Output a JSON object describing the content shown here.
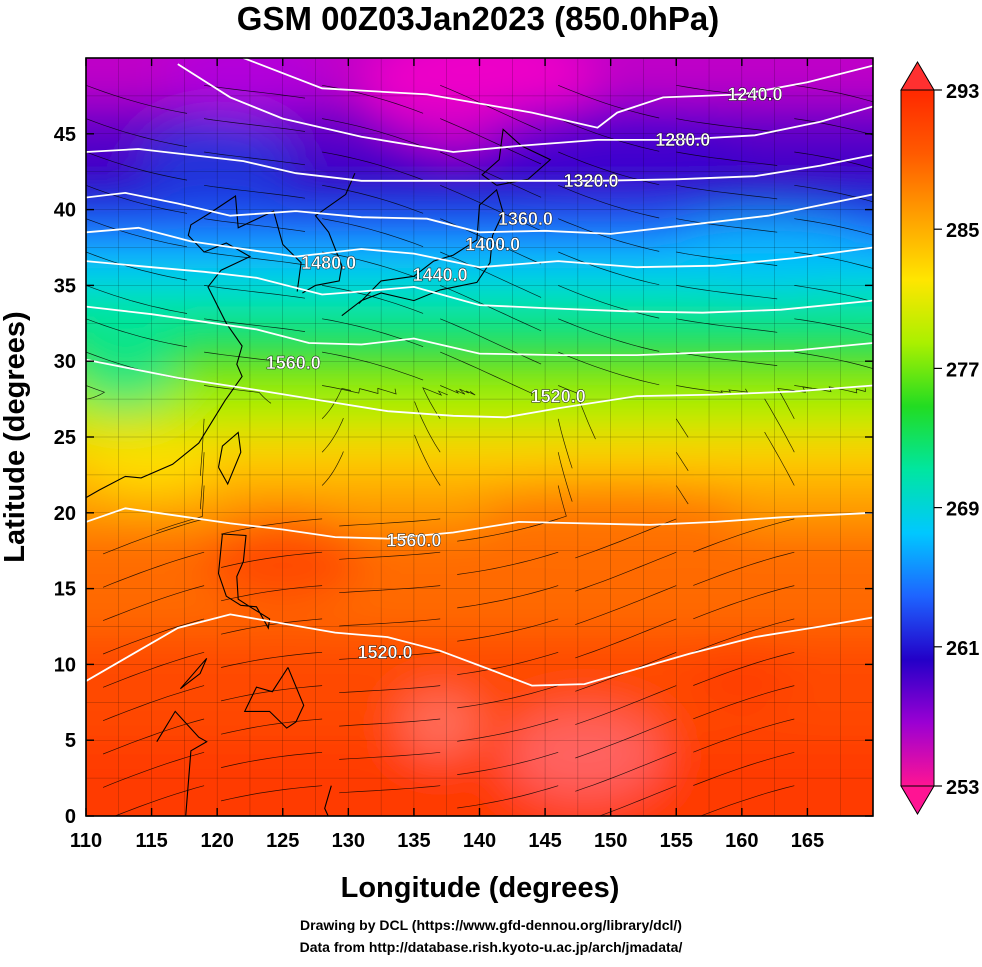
{
  "figure": {
    "title": "GSM 00Z03Jan2023 (850.0hPa)",
    "xlabel": "Longitude (degrees)",
    "ylabel": "Latitude  (degrees)",
    "credits": [
      "Drawing by DCL (https://www.gfd-dennou.org/library/dcl/)",
      "Data from http://database.rish.kyoto-u.ac.jp/arch/jmadata/"
    ]
  },
  "map_extent": {
    "lon": [
      110,
      170
    ],
    "lat": [
      0,
      50
    ]
  },
  "colorbar": {
    "range": [
      253,
      293
    ],
    "tick_labels": [
      "293",
      "285",
      "277",
      "269",
      "261",
      "253"
    ],
    "colors": [
      "#ff1493",
      "#9b00d3",
      "#2300c8",
      "#1e64ff",
      "#00c8ff",
      "#00e6a0",
      "#22dc22",
      "#aaf000",
      "#ffe600",
      "#ffa000",
      "#ff5a00",
      "#ff2800"
    ]
  },
  "chart_data": {
    "type": "heatmap",
    "title": "GSM 00Z03Jan2023 (850.0hPa)",
    "xlabel": "Longitude (degrees)",
    "ylabel": "Latitude  (degrees)",
    "xlim": [
      110,
      170
    ],
    "ylim": [
      0,
      50
    ],
    "x_ticks": [
      "110",
      "115",
      "120",
      "125",
      "130",
      "135",
      "140",
      "145",
      "150",
      "155",
      "160",
      "165"
    ],
    "y_ticks": [
      "0",
      "5",
      "10",
      "15",
      "20",
      "25",
      "30",
      "35",
      "40",
      "45"
    ],
    "shading": "850 hPa temperature (K)",
    "color_range": [
      253,
      293
    ],
    "contours": "geopotential height (m)",
    "contour_labels": [
      {
        "text": "1240.0",
        "lon": 161,
        "lat": 47.5
      },
      {
        "text": "1280.0",
        "lon": 155.5,
        "lat": 44.5
      },
      {
        "text": "1320.0",
        "lon": 148.5,
        "lat": 41.8
      },
      {
        "text": "1360.0",
        "lon": 143.5,
        "lat": 39.3
      },
      {
        "text": "1400.0",
        "lon": 141,
        "lat": 37.6
      },
      {
        "text": "1440.0",
        "lon": 137,
        "lat": 35.6
      },
      {
        "text": "1480.0",
        "lon": 128.5,
        "lat": 36.4
      },
      {
        "text": "1560.0",
        "lon": 125.8,
        "lat": 29.8
      },
      {
        "text": "1520.0",
        "lon": 146,
        "lat": 27.6
      },
      {
        "text": "1560.0",
        "lon": 135,
        "lat": 18.1
      },
      {
        "text": "1520.0",
        "lon": 132.8,
        "lat": 10.7
      }
    ],
    "contour_lines": [
      {
        "level": "1240.0",
        "points": [
          [
            122,
            50
          ],
          [
            128,
            48
          ],
          [
            136,
            47.6
          ],
          [
            144,
            46.4
          ],
          [
            149,
            45.4
          ],
          [
            150.5,
            46.4
          ],
          [
            154,
            47.4
          ],
          [
            160,
            47.6
          ],
          [
            165,
            48.4
          ],
          [
            170,
            49.5
          ]
        ]
      },
      {
        "level": "1280.0",
        "points": [
          [
            117,
            49.6
          ],
          [
            121,
            47.4
          ],
          [
            125,
            46
          ],
          [
            131,
            44.8
          ],
          [
            138,
            43.8
          ],
          [
            143,
            44.2
          ],
          [
            149,
            44.6
          ],
          [
            155,
            44.6
          ],
          [
            161,
            44.9
          ],
          [
            166,
            45.8
          ],
          [
            170,
            46.8
          ]
        ]
      },
      {
        "level": "1320.0",
        "points": [
          [
            110,
            43.8
          ],
          [
            114,
            44
          ],
          [
            118,
            43.6
          ],
          [
            122,
            43.2
          ],
          [
            126,
            42.4
          ],
          [
            131,
            41.9
          ],
          [
            137,
            41.9
          ],
          [
            143,
            41.9
          ],
          [
            149,
            41.9
          ],
          [
            155,
            42
          ],
          [
            161,
            42.2
          ],
          [
            166,
            42.9
          ],
          [
            170,
            43.6
          ]
        ]
      },
      {
        "level": "1360.0",
        "points": [
          [
            110,
            40.8
          ],
          [
            113,
            41.1
          ],
          [
            117,
            40.4
          ],
          [
            121,
            39.6
          ],
          [
            126,
            39.9
          ],
          [
            131,
            39.5
          ],
          [
            136,
            39.4
          ],
          [
            140,
            38.5
          ],
          [
            145,
            38.6
          ],
          [
            150,
            38.4
          ],
          [
            156,
            39
          ],
          [
            162,
            39.6
          ],
          [
            166,
            40.3
          ],
          [
            170,
            41
          ]
        ]
      },
      {
        "level": "1400.0",
        "points": [
          [
            110,
            38.5
          ],
          [
            114,
            38.8
          ],
          [
            118,
            37.9
          ],
          [
            122,
            37.4
          ],
          [
            126,
            36.9
          ],
          [
            131,
            37.4
          ],
          [
            135,
            37.1
          ],
          [
            140,
            36.2
          ],
          [
            146,
            36.6
          ],
          [
            152,
            36.2
          ],
          [
            158,
            36.3
          ],
          [
            164,
            36.8
          ],
          [
            170,
            37.5
          ]
        ]
      },
      {
        "level": "1440.0",
        "points": [
          [
            110,
            36.6
          ],
          [
            115,
            36.2
          ],
          [
            119,
            35.9
          ],
          [
            123,
            35.5
          ],
          [
            128,
            34.4
          ],
          [
            131,
            34.6
          ],
          [
            135,
            34.9
          ],
          [
            140,
            33.7
          ],
          [
            145,
            33.5
          ],
          [
            151,
            33.3
          ],
          [
            157,
            33.2
          ],
          [
            163,
            33.4
          ],
          [
            170,
            34
          ]
        ]
      },
      {
        "level": "1480.0",
        "points": [
          [
            110,
            33.6
          ],
          [
            115,
            33.1
          ],
          [
            119,
            32.6
          ],
          [
            123,
            32.1
          ],
          [
            127,
            31.2
          ],
          [
            131,
            31.1
          ],
          [
            135,
            31.5
          ],
          [
            140,
            30.5
          ],
          [
            146,
            30.4
          ],
          [
            152,
            30.4
          ],
          [
            158,
            30.6
          ],
          [
            164,
            30.7
          ],
          [
            170,
            31.2
          ]
        ]
      },
      {
        "level": "1520.0",
        "points": [
          [
            110,
            30.1
          ],
          [
            117,
            28.9
          ],
          [
            123,
            28.1
          ],
          [
            128,
            27.4
          ],
          [
            133,
            26.7
          ],
          [
            138,
            26.4
          ],
          [
            142,
            26.3
          ],
          [
            146,
            26.9
          ],
          [
            152,
            27.7
          ],
          [
            158,
            27.8
          ],
          [
            164,
            28
          ],
          [
            170,
            28.4
          ]
        ]
      },
      {
        "level": "1560.0",
        "points": [
          [
            110,
            19.4
          ],
          [
            113,
            20.3
          ],
          [
            117,
            19.8
          ],
          [
            121,
            19.3
          ],
          [
            125,
            18.9
          ],
          [
            129,
            18.4
          ],
          [
            133,
            18.3
          ],
          [
            138,
            18.7
          ],
          [
            143,
            19.4
          ],
          [
            148,
            19.3
          ],
          [
            153,
            19.2
          ],
          [
            158,
            19.4
          ],
          [
            163,
            19.7
          ],
          [
            170,
            20
          ]
        ]
      },
      {
        "level": "1520.0",
        "points": [
          [
            110,
            8.9
          ],
          [
            113,
            10.4
          ],
          [
            117,
            12.4
          ],
          [
            121,
            13.3
          ],
          [
            125,
            12.7
          ],
          [
            129,
            12.1
          ],
          [
            133,
            11.8
          ],
          [
            137,
            10.9
          ],
          [
            141,
            9.6
          ],
          [
            144,
            8.6
          ],
          [
            148,
            8.7
          ],
          [
            152,
            9.7
          ],
          [
            156,
            10.7
          ],
          [
            161,
            11.8
          ],
          [
            166,
            12.5
          ],
          [
            170,
            13.1
          ]
        ]
      }
    ]
  }
}
